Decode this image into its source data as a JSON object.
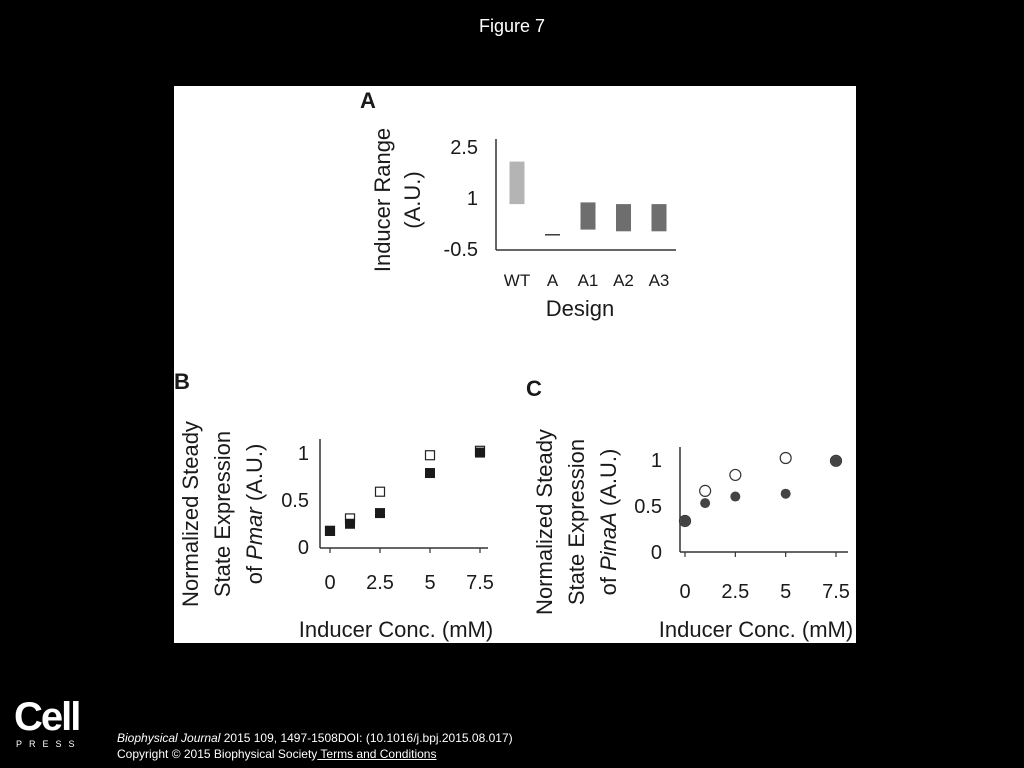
{
  "figure_title": "Figure 7",
  "logo": {
    "word": "Cell",
    "sub": "PRESS"
  },
  "citation": {
    "journal": "Biophysical Journal",
    "details": " 2015 109, 1497-1508DOI: (10.1016/j.bpj.2015.08.017)",
    "copyright": "Copyright © 2015 Biophysical Society",
    "terms_link": " Terms and Conditions"
  },
  "chart_data": [
    {
      "panel": "A",
      "type": "bar",
      "ylabel_line1": "Inducer Range",
      "ylabel_line2": "(A.U.)",
      "xlabel": "Design",
      "ylim": [
        -0.5,
        2.5
      ],
      "yticks": [
        "2.5",
        "1",
        "-0.5"
      ],
      "categories": [
        "WT",
        "A",
        "A1",
        "A2",
        "A3"
      ],
      "ranges": [
        [
          0.85,
          2.1
        ],
        [
          -0.03,
          -0.03
        ],
        [
          0.1,
          0.9
        ],
        [
          0.05,
          0.85
        ],
        [
          0.05,
          0.85
        ]
      ],
      "colors": [
        "#b4b4b4",
        "#3c3c3c",
        "#6e6e6e",
        "#6e6e6e",
        "#6e6e6e"
      ]
    },
    {
      "panel": "B",
      "type": "scatter",
      "ylabel_line1": "Normalized Steady",
      "ylabel_line2": "State Expression",
      "ylabel_line3_prefix": "of ",
      "ylabel_line3_italic": "Pmar",
      "ylabel_line3_suffix": " (A.U.)",
      "xlabel": "Inducer Conc. (mM)",
      "xlim": [
        0,
        7.5
      ],
      "ylim": [
        0,
        1
      ],
      "xticks": [
        "0",
        "2.5",
        "5",
        "7.5"
      ],
      "yticks": [
        "1",
        "0.5",
        "0"
      ],
      "marker": "square",
      "series": [
        {
          "style": "open",
          "x": [
            0,
            1,
            2.5,
            5,
            7.5
          ],
          "y": [
            0.08,
            0.22,
            0.52,
            0.93,
            0.98
          ]
        },
        {
          "style": "filled",
          "x": [
            0,
            1,
            2.5,
            5,
            7.5
          ],
          "y": [
            0.08,
            0.16,
            0.28,
            0.73,
            0.96
          ]
        }
      ]
    },
    {
      "panel": "C",
      "type": "scatter",
      "ylabel_line1": "Normalized Steady",
      "ylabel_line2": "State Expression",
      "ylabel_line3_prefix": "of ",
      "ylabel_line3_italic": "PinaA",
      "ylabel_line3_suffix": " (A.U.)",
      "xlabel": "Inducer Conc. (mM)",
      "xlim": [
        0,
        7.5
      ],
      "ylim": [
        0,
        1
      ],
      "xticks": [
        "0",
        "2.5",
        "5",
        "7.5"
      ],
      "yticks": [
        "1",
        "0.5",
        "0"
      ],
      "marker": "circle",
      "series": [
        {
          "style": "open",
          "x": [
            0,
            1,
            2.5,
            5,
            7.5
          ],
          "y": [
            0.33,
            0.65,
            0.82,
            1.0,
            0.97
          ]
        },
        {
          "style": "filled",
          "x": [
            0,
            1,
            2.5,
            5,
            7.5
          ],
          "y": [
            0.33,
            0.52,
            0.59,
            0.62,
            0.97
          ]
        }
      ]
    }
  ]
}
